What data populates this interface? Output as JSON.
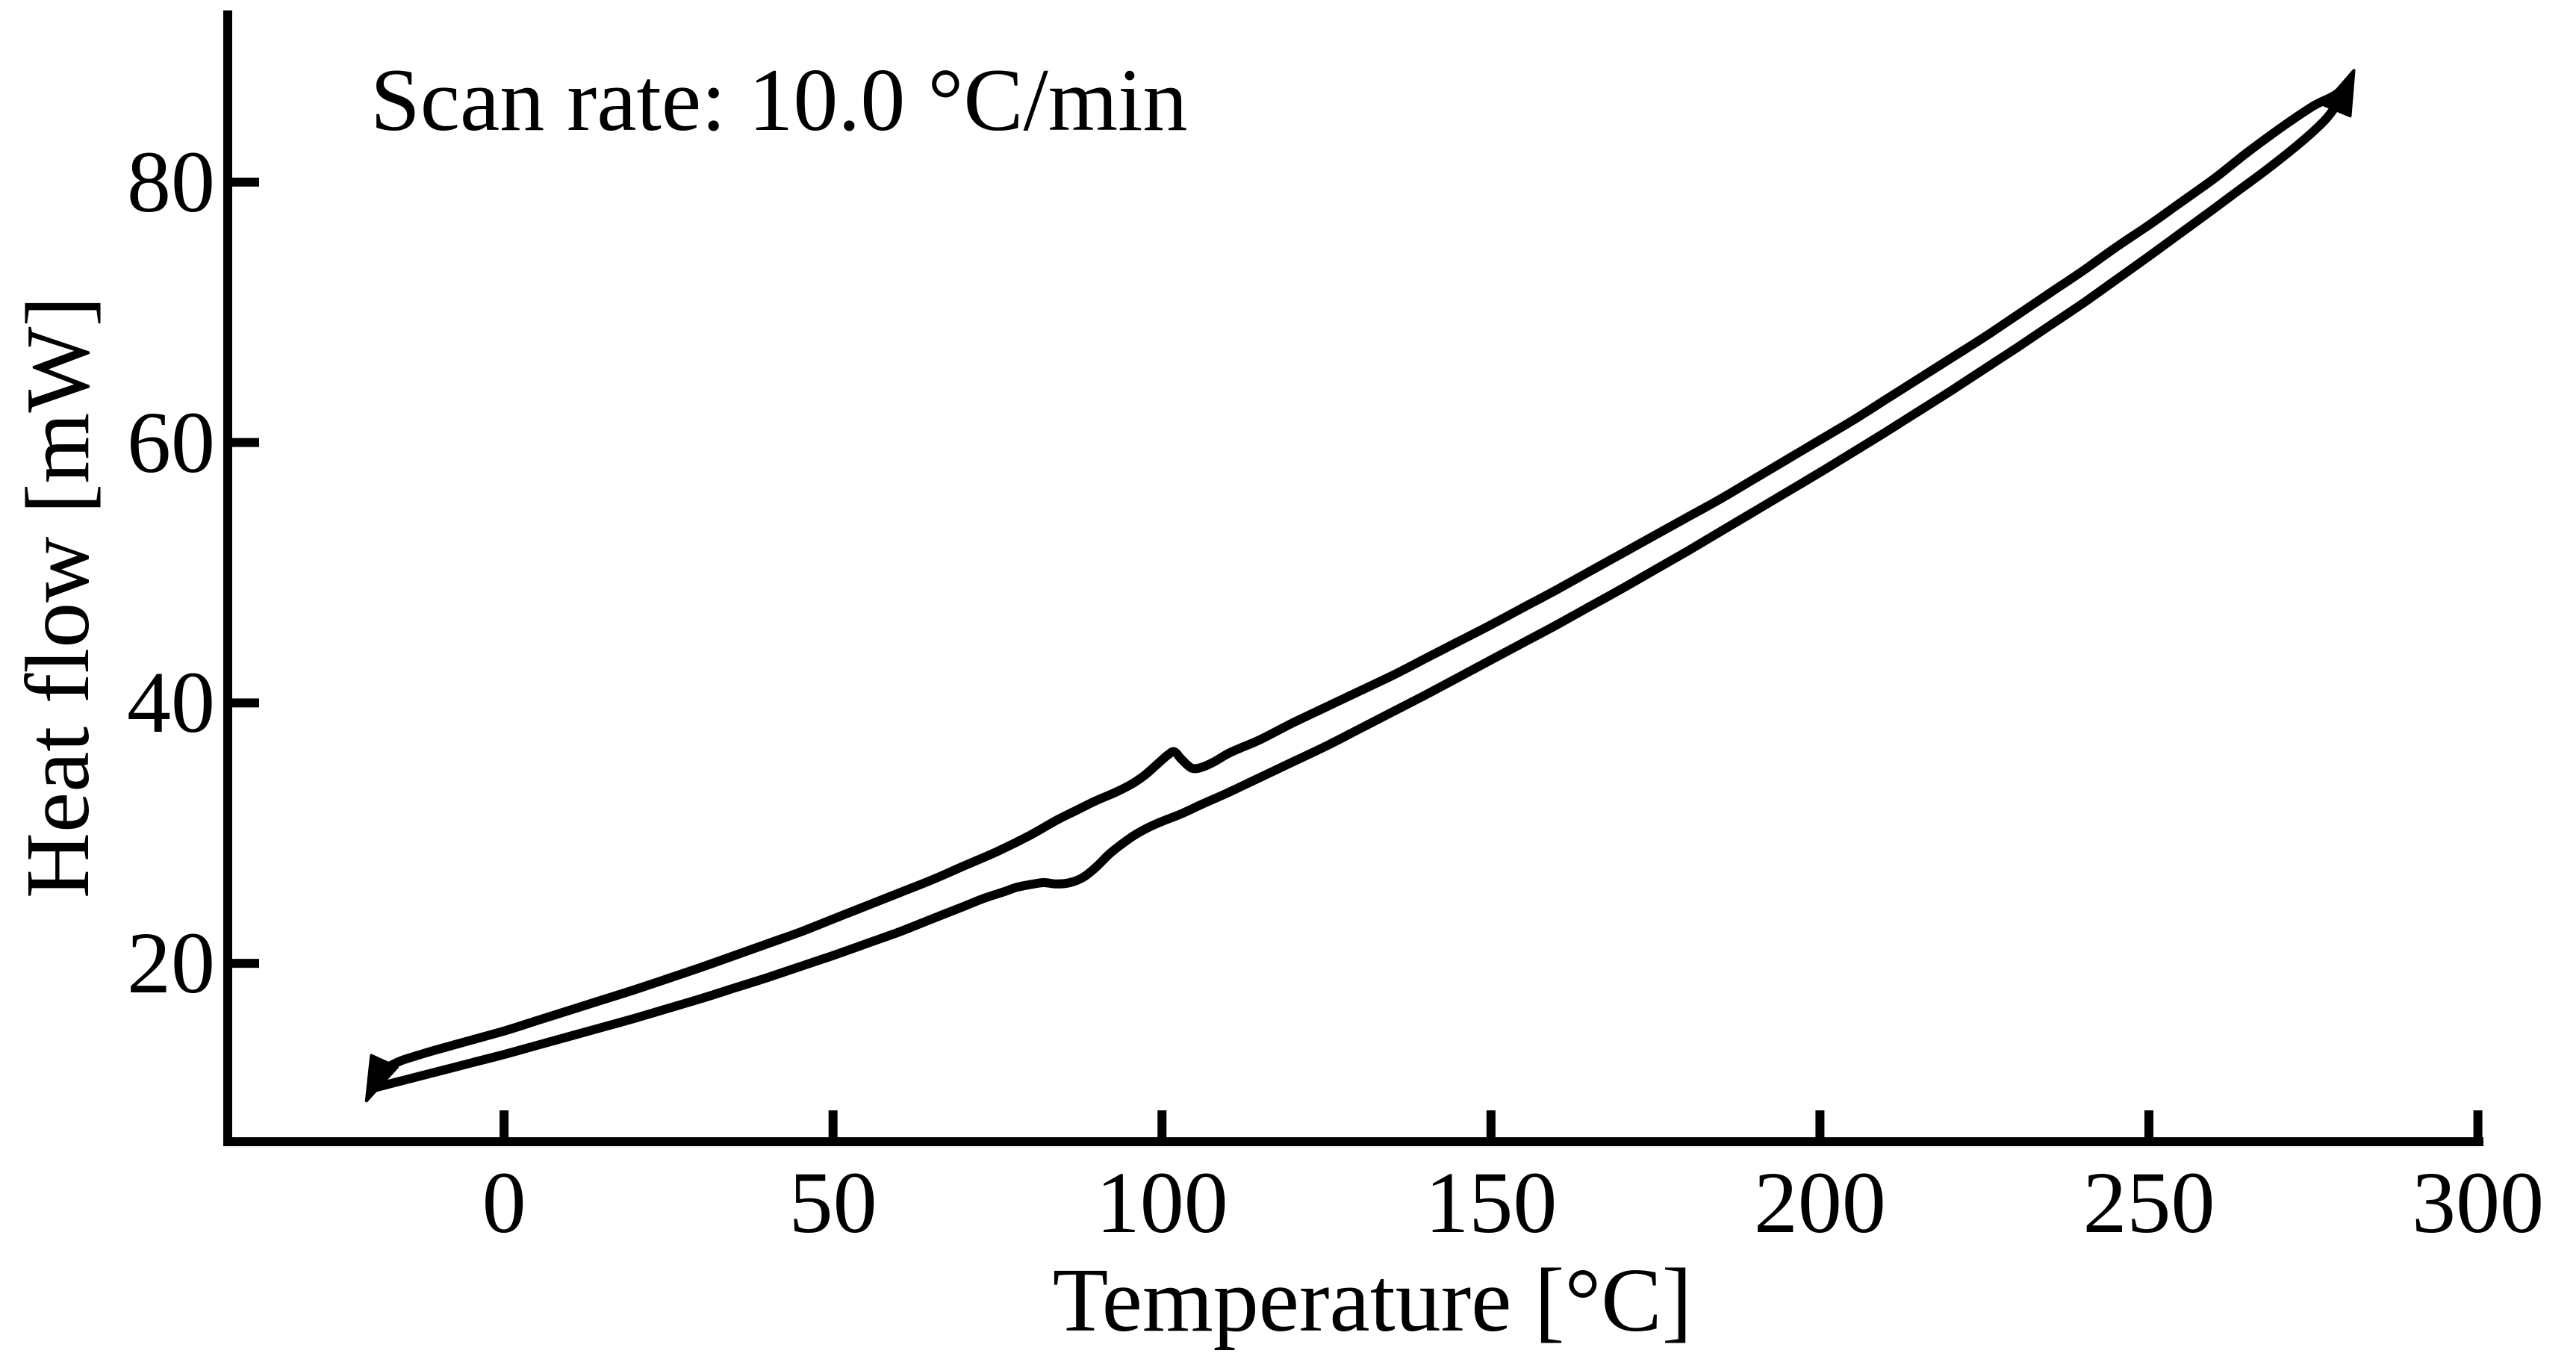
{
  "chart_data": {
    "type": "line",
    "title": "",
    "annotation": "Scan rate: 10.0 °C/min",
    "xlabel": "Temperature [°C]",
    "ylabel": "Heat flow [mW]",
    "x_ticks": [
      0,
      50,
      100,
      150,
      200,
      250,
      300
    ],
    "y_ticks": [
      20,
      40,
      60,
      80
    ],
    "xlim": [
      -42,
      300.5
    ],
    "ylim": [
      6.3,
      93.3
    ],
    "grid": false,
    "legend": null,
    "line_color": "#000000",
    "background_color": "#ffffff",
    "series": [
      {
        "name": "heating-scan-lower-curve",
        "arrow": "end",
        "points": [
          [
            -20,
            10.4
          ],
          [
            -15,
            11.05
          ],
          [
            -10,
            11.7
          ],
          [
            -5,
            12.35
          ],
          [
            0,
            13.0
          ],
          [
            5,
            13.7
          ],
          [
            10,
            14.4
          ],
          [
            15,
            15.1
          ],
          [
            20,
            15.8
          ],
          [
            25,
            16.55
          ],
          [
            30,
            17.3
          ],
          [
            35,
            18.1
          ],
          [
            40,
            18.9
          ],
          [
            45,
            19.75
          ],
          [
            50,
            20.6
          ],
          [
            55,
            21.5
          ],
          [
            60,
            22.4
          ],
          [
            65,
            23.4
          ],
          [
            70,
            24.4
          ],
          [
            73,
            25.0
          ],
          [
            76,
            25.5
          ],
          [
            78,
            25.85
          ],
          [
            80,
            26.05
          ],
          [
            82,
            26.2
          ],
          [
            84,
            26.1
          ],
          [
            86,
            26.2
          ],
          [
            88,
            26.6
          ],
          [
            90,
            27.4
          ],
          [
            92,
            28.4
          ],
          [
            94,
            29.2
          ],
          [
            96,
            29.9
          ],
          [
            98,
            30.45
          ],
          [
            100,
            30.9
          ],
          [
            103,
            31.5
          ],
          [
            106,
            32.2
          ],
          [
            110,
            33.1
          ],
          [
            115,
            34.3
          ],
          [
            120,
            35.5
          ],
          [
            125,
            36.7
          ],
          [
            130,
            38.0
          ],
          [
            135,
            39.3
          ],
          [
            140,
            40.6
          ],
          [
            145,
            41.95
          ],
          [
            150,
            43.3
          ],
          [
            155,
            44.65
          ],
          [
            160,
            46.0
          ],
          [
            165,
            47.4
          ],
          [
            170,
            48.8
          ],
          [
            175,
            50.25
          ],
          [
            180,
            51.7
          ],
          [
            185,
            53.2
          ],
          [
            190,
            54.7
          ],
          [
            195,
            56.2
          ],
          [
            200,
            57.7
          ],
          [
            205,
            59.25
          ],
          [
            210,
            60.8
          ],
          [
            215,
            62.4
          ],
          [
            220,
            64.0
          ],
          [
            225,
            65.65
          ],
          [
            230,
            67.3
          ],
          [
            235,
            69.0
          ],
          [
            240,
            70.7
          ],
          [
            245,
            72.5
          ],
          [
            250,
            74.3
          ],
          [
            255,
            76.15
          ],
          [
            260,
            78.0
          ],
          [
            264,
            79.5
          ],
          [
            268,
            81.0
          ],
          [
            272,
            82.6
          ],
          [
            275,
            83.9
          ],
          [
            277,
            84.9
          ],
          [
            278.5,
            85.9
          ],
          [
            279.5,
            86.6
          ],
          [
            280,
            87.2
          ]
        ]
      },
      {
        "name": "cooling-scan-upper-curve",
        "arrow": "end",
        "points": [
          [
            280,
            87.35
          ],
          [
            278,
            86.6
          ],
          [
            275,
            85.85
          ],
          [
            270,
            84.15
          ],
          [
            265,
            82.3
          ],
          [
            260,
            80.3
          ],
          [
            255,
            78.5
          ],
          [
            250,
            76.7
          ],
          [
            245,
            75.0
          ],
          [
            240,
            73.2
          ],
          [
            235,
            71.5
          ],
          [
            230,
            69.8
          ],
          [
            225,
            68.1
          ],
          [
            220,
            66.5
          ],
          [
            215,
            64.9
          ],
          [
            210,
            63.3
          ],
          [
            205,
            61.7
          ],
          [
            200,
            60.2
          ],
          [
            195,
            58.7
          ],
          [
            190,
            57.2
          ],
          [
            185,
            55.7
          ],
          [
            180,
            54.3
          ],
          [
            175,
            52.9
          ],
          [
            170,
            51.5
          ],
          [
            165,
            50.1
          ],
          [
            160,
            48.7
          ],
          [
            155,
            47.35
          ],
          [
            150,
            46.0
          ],
          [
            145,
            44.7
          ],
          [
            140,
            43.4
          ],
          [
            135,
            42.1
          ],
          [
            130,
            40.9
          ],
          [
            125,
            39.7
          ],
          [
            120,
            38.5
          ],
          [
            115,
            37.2
          ],
          [
            112,
            36.55
          ],
          [
            110,
            36.1
          ],
          [
            108,
            35.5
          ],
          [
            106,
            35.05
          ],
          [
            104.5,
            35.0
          ],
          [
            103,
            35.65
          ],
          [
            101.9,
            36.25
          ],
          [
            101,
            36.05
          ],
          [
            99.5,
            35.4
          ],
          [
            97.5,
            34.5
          ],
          [
            95.5,
            33.8
          ],
          [
            93,
            33.15
          ],
          [
            90,
            32.5
          ],
          [
            87,
            31.75
          ],
          [
            84,
            31.0
          ],
          [
            80,
            29.85
          ],
          [
            75,
            28.6
          ],
          [
            70,
            27.5
          ],
          [
            65,
            26.4
          ],
          [
            60,
            25.4
          ],
          [
            55,
            24.4
          ],
          [
            50,
            23.4
          ],
          [
            45,
            22.4
          ],
          [
            40,
            21.5
          ],
          [
            35,
            20.6
          ],
          [
            30,
            19.7
          ],
          [
            25,
            18.85
          ],
          [
            20,
            18.0
          ],
          [
            15,
            17.2
          ],
          [
            10,
            16.4
          ],
          [
            5,
            15.6
          ],
          [
            0,
            14.8
          ],
          [
            -5,
            14.1
          ],
          [
            -10,
            13.4
          ],
          [
            -13,
            12.95
          ],
          [
            -15.5,
            12.55
          ],
          [
            -17.2,
            12.15
          ],
          [
            -18.5,
            11.7
          ],
          [
            -19.3,
            11.25
          ],
          [
            -19.7,
            10.8
          ]
        ]
      }
    ]
  }
}
